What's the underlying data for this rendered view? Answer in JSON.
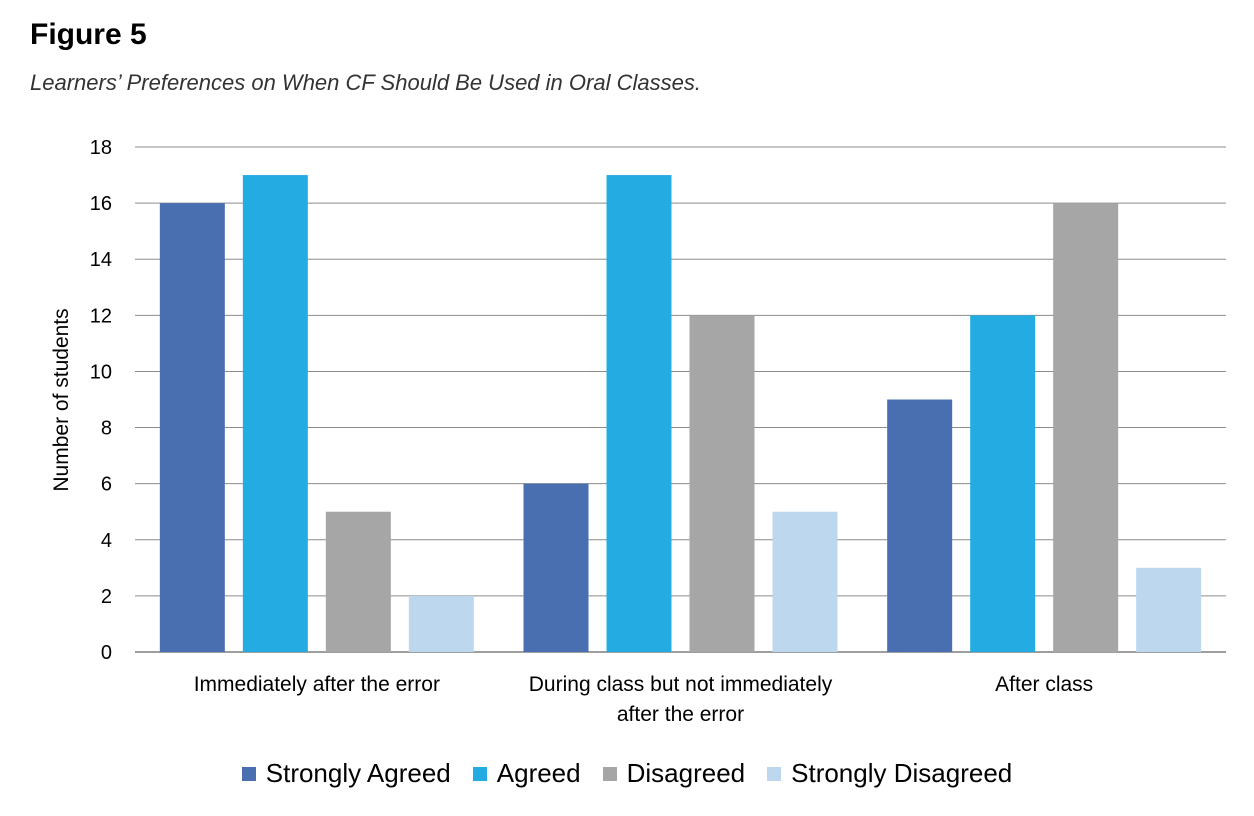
{
  "figure_label": "Figure 5",
  "caption": "Learners’ Preferences on When CF Should Be Used in Oral Classes.",
  "chart_data": {
    "type": "bar",
    "title": "",
    "ylabel": "Number of students",
    "xlabel": "",
    "ylim": [
      0,
      18
    ],
    "yticks": [
      0,
      2,
      4,
      6,
      8,
      10,
      12,
      14,
      16,
      18
    ],
    "grid": true,
    "legend_position": "bottom",
    "categories": [
      [
        "Immediately after the error"
      ],
      [
        "During class but not immediately",
        "after the error"
      ],
      [
        "After class"
      ]
    ],
    "series": [
      {
        "name": "Strongly Agreed",
        "color": "#4A6FB0",
        "values": [
          16,
          6,
          9
        ]
      },
      {
        "name": "Agreed",
        "color": "#24ACE2",
        "values": [
          17,
          17,
          12
        ]
      },
      {
        "name": "Disagreed",
        "color": "#A6A6A6",
        "values": [
          5,
          12,
          16
        ]
      },
      {
        "name": "Strongly Disagreed",
        "color": "#BDD7EE",
        "values": [
          2,
          5,
          3
        ]
      }
    ]
  }
}
